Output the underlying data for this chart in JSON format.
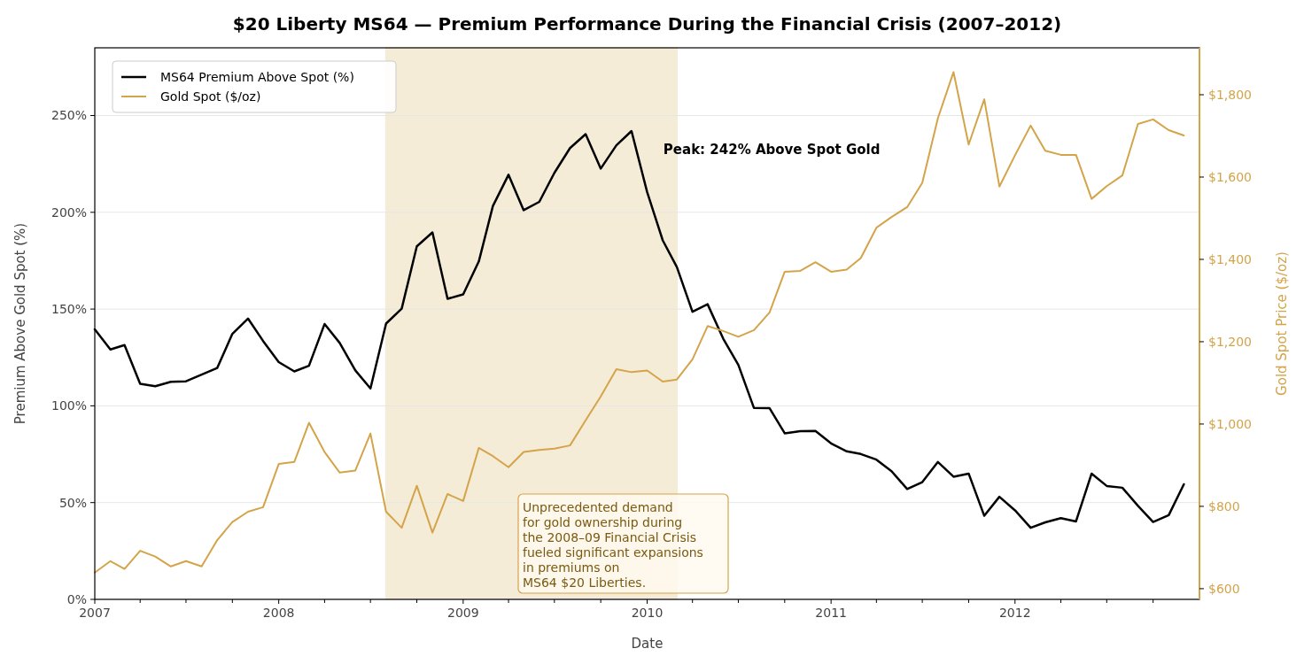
{
  "chart_data": {
    "type": "line",
    "title": "$20 Liberty MS64 — Premium Performance During the Financial Crisis (2007–2012)",
    "xlabel": "Date",
    "ylabel": "Premium Above Gold Spot (%)",
    "y2label": "Gold Spot Price ($/oz)",
    "x": [
      "2007-01",
      "2007-02",
      "2007-03",
      "2007-04",
      "2007-05",
      "2007-06",
      "2007-07",
      "2007-08",
      "2007-09",
      "2007-10",
      "2007-11",
      "2007-12",
      "2008-01",
      "2008-02",
      "2008-03",
      "2008-04",
      "2008-05",
      "2008-06",
      "2008-07",
      "2008-08",
      "2008-09",
      "2008-10",
      "2008-11",
      "2008-12",
      "2009-01",
      "2009-02",
      "2009-03",
      "2009-04",
      "2009-05",
      "2009-06",
      "2009-07",
      "2009-08",
      "2009-09",
      "2009-10",
      "2009-11",
      "2009-12",
      "2010-01",
      "2010-02",
      "2010-03",
      "2010-04",
      "2010-05",
      "2010-06",
      "2010-07",
      "2010-08",
      "2010-09",
      "2010-10",
      "2010-11",
      "2010-12",
      "2011-01",
      "2011-02",
      "2011-03",
      "2011-04",
      "2011-05",
      "2011-06",
      "2011-07",
      "2011-08",
      "2011-09",
      "2011-10",
      "2011-11",
      "2011-12",
      "2012-01",
      "2012-02",
      "2012-03",
      "2012-04",
      "2012-05",
      "2012-06",
      "2012-07",
      "2012-08",
      "2012-09",
      "2012-10",
      "2012-11",
      "2012-12"
    ],
    "series": [
      {
        "name": "MS64 Premium Above Spot (%)",
        "color": "#000000",
        "values": [
          139.5,
          129.1,
          131.4,
          111.4,
          110.1,
          112.4,
          112.7,
          116.1,
          119.6,
          137.2,
          145.1,
          133.5,
          122.6,
          117.8,
          120.7,
          142.3,
          132.5,
          118.3,
          109,
          142.5,
          150.2,
          182.4,
          189.6,
          155.3,
          157.6,
          174.6,
          203.3,
          219.4,
          201.1,
          205.4,
          220.4,
          233.2,
          240.4,
          222.6,
          234.6,
          242,
          210.5,
          185.5,
          171.7,
          148.6,
          152.5,
          134.7,
          121.2,
          98.9,
          98.8,
          85.8,
          86.9,
          87,
          80.6,
          76.5,
          75.1,
          72.2,
          66.2,
          57,
          60.6,
          71,
          63.4,
          65,
          43.2,
          53,
          46,
          37,
          39.8,
          42,
          40.3,
          65,
          58.6,
          57.7,
          48.3,
          40,
          43.5,
          59.5
        ]
      },
      {
        "name": "Gold Spot ($/oz)",
        "color": "#d4a44a",
        "axis": "y2",
        "values": [
          639,
          667,
          648,
          692,
          678,
          654,
          667,
          654,
          718,
          762,
          787,
          798,
          903,
          908,
          1003,
          932,
          882,
          887,
          977,
          787,
          748,
          850,
          736,
          830,
          813,
          942,
          922,
          895,
          932,
          937,
          940,
          948,
          1009,
          1067,
          1133,
          1126,
          1130,
          1103,
          1108,
          1157,
          1238,
          1226,
          1212,
          1228,
          1271,
          1370,
          1372,
          1393,
          1370,
          1375,
          1403,
          1477,
          1503,
          1527,
          1586,
          1743,
          1855,
          1679,
          1789,
          1577,
          1653,
          1725,
          1664,
          1654,
          1654,
          1547,
          1578,
          1604,
          1729,
          1740,
          1714,
          1701
        ]
      }
    ],
    "xlim": [
      "2007-01-01",
      "2013-01-01"
    ],
    "xticks": [
      {
        "value": "2007-01-01",
        "label": "2007"
      },
      {
        "value": "2007-04-01",
        "label": null
      },
      {
        "value": "2007-07-01",
        "label": null
      },
      {
        "value": "2007-10-01",
        "label": null
      },
      {
        "value": "2008-01-01",
        "label": "2008"
      },
      {
        "value": "2008-04-01",
        "label": null
      },
      {
        "value": "2008-07-01",
        "label": null
      },
      {
        "value": "2008-10-01",
        "label": null
      },
      {
        "value": "2009-01-01",
        "label": "2009"
      },
      {
        "value": "2009-04-01",
        "label": null
      },
      {
        "value": "2009-07-01",
        "label": null
      },
      {
        "value": "2009-10-01",
        "label": null
      },
      {
        "value": "2010-01-01",
        "label": "2010"
      },
      {
        "value": "2010-04-01",
        "label": null
      },
      {
        "value": "2010-07-01",
        "label": null
      },
      {
        "value": "2010-10-01",
        "label": null
      },
      {
        "value": "2011-01-01",
        "label": "2011"
      },
      {
        "value": "2011-04-01",
        "label": null
      },
      {
        "value": "2011-07-01",
        "label": null
      },
      {
        "value": "2011-10-01",
        "label": null
      },
      {
        "value": "2012-01-01",
        "label": "2012"
      },
      {
        "value": "2012-04-01",
        "label": null
      },
      {
        "value": "2012-07-01",
        "label": null
      },
      {
        "value": "2012-10-01",
        "label": null
      }
    ],
    "ylim": [
      0,
      285
    ],
    "yticks": [
      {
        "value": 0,
        "label": "0%"
      },
      {
        "value": 50,
        "label": "50%"
      },
      {
        "value": 100,
        "label": "100%"
      },
      {
        "value": 150,
        "label": "150%"
      },
      {
        "value": 200,
        "label": "200%"
      },
      {
        "value": 250,
        "label": "250%"
      }
    ],
    "y2lim": [
      574,
      1914
    ],
    "y2ticks": [
      {
        "value": 600,
        "label": "$600"
      },
      {
        "value": 800,
        "label": "$800"
      },
      {
        "value": 1000,
        "label": "$1,000"
      },
      {
        "value": 1200,
        "label": "$1,200"
      },
      {
        "value": 1400,
        "label": "$1,400"
      },
      {
        "value": 1600,
        "label": "$1,600"
      },
      {
        "value": 1800,
        "label": "$1,800"
      }
    ],
    "grid": "y",
    "legend": "top left",
    "line_style": "solid",
    "marker": "none",
    "bands": [
      {
        "axis": "x",
        "from": "2008-08-01",
        "to": "2010-03-01",
        "color": "#f5ecd7"
      }
    ],
    "annotations": [
      {
        "text": "Peak: 242% Above Spot Gold",
        "x": "2009-12",
        "y": 242
      },
      "Unprecedented demand\nfor gold ownership during\nthe 2008–09 Financial Crisis\nfueled significant expansions\nin premiums on\nMS64 $20 Liberties."
    ]
  }
}
